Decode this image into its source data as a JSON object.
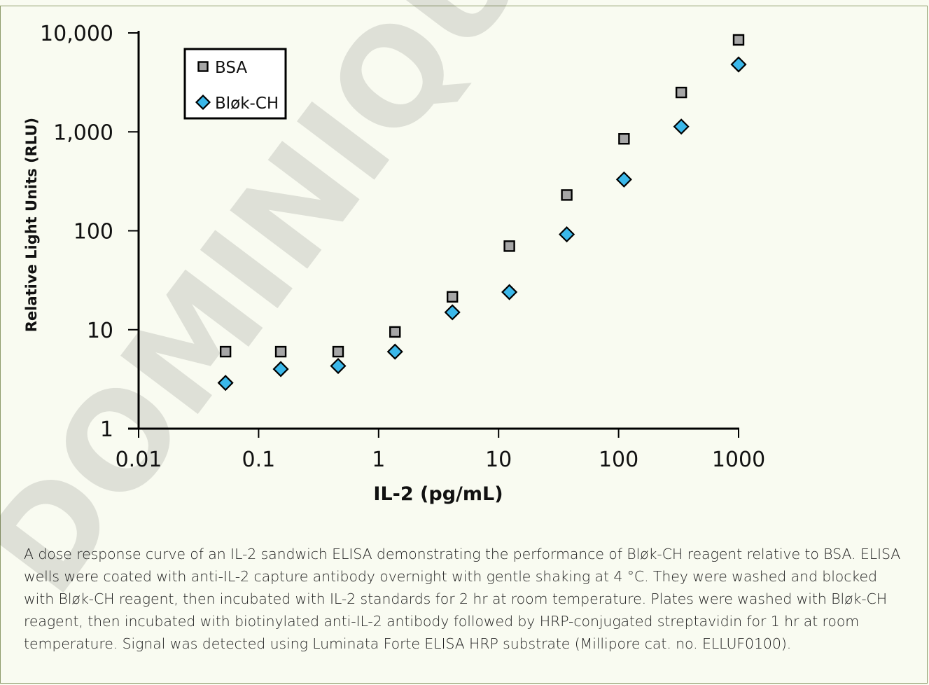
{
  "watermark": "DOMINIQUE DUTSCHER",
  "chart_data": {
    "type": "scatter",
    "xscale": "log",
    "yscale": "log",
    "xlim": [
      0.01,
      1000
    ],
    "ylim": [
      1,
      10000
    ],
    "xlabel": "IL-2 (pg/mL)",
    "ylabel": "Relative Light Units (RLU)",
    "xticks": [
      "0.01",
      "0.1",
      "1",
      "10",
      "100",
      "1000"
    ],
    "yticks": [
      "1",
      "10",
      "100",
      "1,000",
      "10,000"
    ],
    "legend_position": "top-left",
    "series": [
      {
        "name": "BSA",
        "marker": "square",
        "color": "#a6a6a6",
        "x": [
          0.053,
          0.153,
          0.46,
          1.37,
          4.12,
          12.3,
          37,
          111,
          333,
          1000
        ],
        "y": [
          6,
          6,
          6,
          9.5,
          21.5,
          70,
          230,
          850,
          2500,
          8500
        ]
      },
      {
        "name": "Bløk-CH",
        "marker": "diamond",
        "color": "#3bb8ea",
        "x": [
          0.053,
          0.153,
          0.46,
          1.37,
          4.12,
          12.3,
          37,
          111,
          333,
          1000
        ],
        "y": [
          2.9,
          4,
          4.3,
          6,
          15,
          24,
          92,
          330,
          1130,
          4800
        ]
      }
    ]
  },
  "caption": "A dose response curve of an IL-2 sandwich ELISA demonstrating the performance of Bløk-CH reagent relative to BSA. ELISA wells were coated with anti-IL-2 capture antibody overnight with gentle shaking at 4 °C. They were washed and blocked with Bløk-CH reagent, then incubated with IL-2 standards for 2 hr at room temperature. Plates were washed with Bløk-CH reagent, then incubated with biotinylated anti-IL-2 antibody followed by HRP-conjugated streptavidin for 1 hr at room temperature. Signal was detected using Luminata Forte ELISA HRP substrate (Millipore cat. no. ELLUF0100)."
}
